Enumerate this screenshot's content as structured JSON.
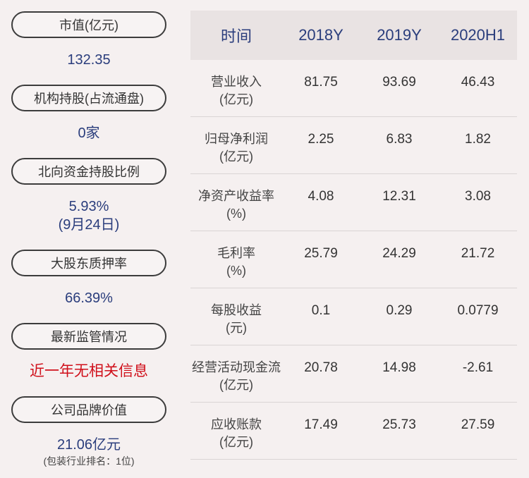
{
  "left": [
    {
      "label": "市值(亿元)",
      "lines": [
        "132.35"
      ]
    },
    {
      "label": "机构持股(占流通盘)",
      "lines": [
        "0家"
      ]
    },
    {
      "label": "北向资金持股比例",
      "lines": [
        "5.93%",
        "(9月24日)"
      ]
    },
    {
      "label": "大股东质押率",
      "lines": [
        "66.39%"
      ]
    },
    {
      "label": "最新监管情况",
      "lines": [
        "近一年无相关信息"
      ]
    },
    {
      "label": "公司品牌价值",
      "lines": [
        "21.06亿元"
      ],
      "note": "(包装行业排名：1位)"
    }
  ],
  "table": {
    "header": [
      "时间",
      "2018Y",
      "2019Y",
      "2020H1"
    ],
    "rows": [
      {
        "label": [
          "营业收入",
          "(亿元)"
        ],
        "values": [
          "81.75",
          "93.69",
          "46.43"
        ]
      },
      {
        "label": [
          "归母净利润",
          "(亿元)"
        ],
        "values": [
          "2.25",
          "6.83",
          "1.82"
        ]
      },
      {
        "label": [
          "净资产收益率",
          "(%)"
        ],
        "values": [
          "4.08",
          "12.31",
          "3.08"
        ]
      },
      {
        "label": [
          "毛利率",
          "(%)"
        ],
        "values": [
          "25.79",
          "24.29",
          "21.72"
        ]
      },
      {
        "label": [
          "每股收益",
          "(元)"
        ],
        "values": [
          "0.1",
          "0.29",
          "0.0779"
        ]
      },
      {
        "label": [
          "经营活动现金流",
          "(亿元)"
        ],
        "values": [
          "20.78",
          "14.98",
          "-2.61"
        ]
      },
      {
        "label": [
          "应收账款",
          "(亿元)"
        ],
        "values": [
          "17.49",
          "25.73",
          "27.59"
        ]
      }
    ]
  }
}
